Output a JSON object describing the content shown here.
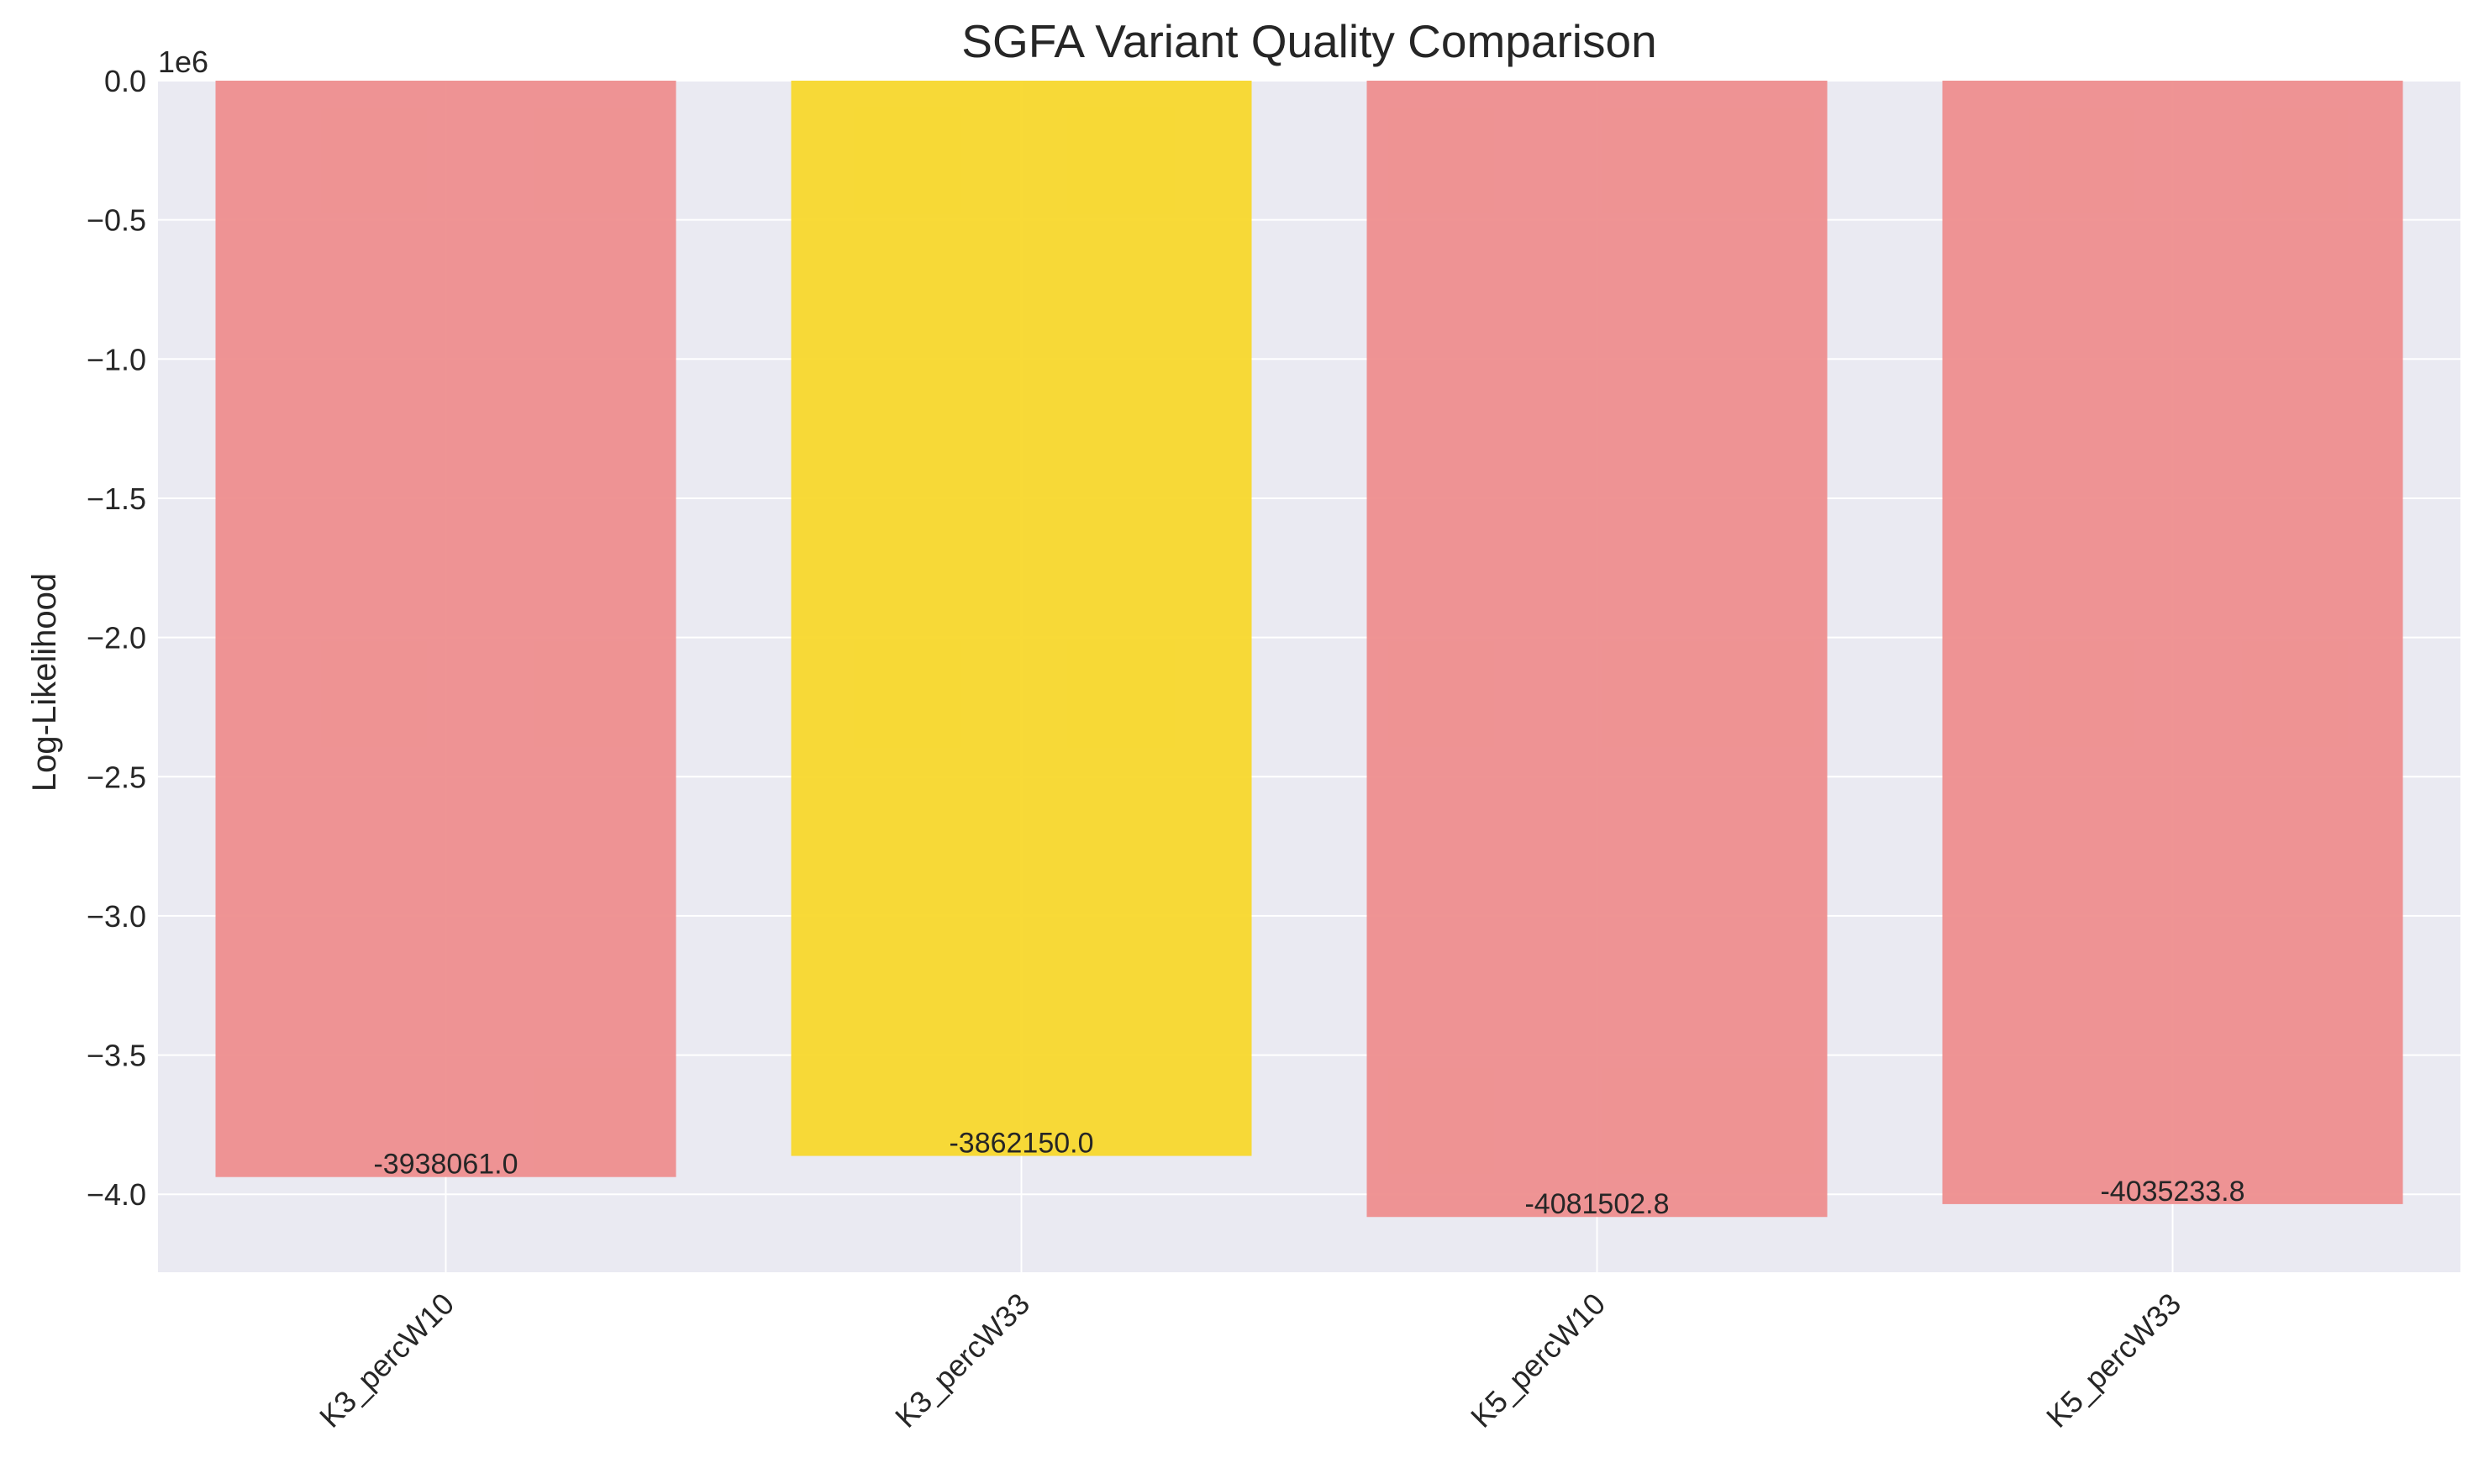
{
  "chart_data": {
    "type": "bar",
    "title": "SGFA Variant Quality Comparison",
    "xlabel": "",
    "ylabel": "Log-Likelihood",
    "y_offset_text": "1e6",
    "categories": [
      "K3_percW10",
      "K3_percW33",
      "K5_percW10",
      "K5_percW33"
    ],
    "values": [
      -3938061.0,
      -3862150.0,
      -4081502.8,
      -4035233.8
    ],
    "value_labels": [
      "-3938061.0",
      "-3862150.0",
      "-4081502.8",
      "-4035233.8"
    ],
    "bar_colors": [
      "#ee8e8e",
      "#f8d82c",
      "#ee8e8e",
      "#ee8e8e"
    ],
    "highlighted_category": "K3_percW33",
    "ylim": [
      -4280000,
      0
    ],
    "yticks": [
      0,
      -500000,
      -1000000,
      -1500000,
      -2000000,
      -2500000,
      -3000000,
      -3500000,
      -4000000
    ],
    "ytick_labels": [
      "0.0",
      "−0.5",
      "−1.0",
      "−1.5",
      "−2.0",
      "−2.5",
      "−3.0",
      "−3.5",
      "−4.0"
    ],
    "grid": true,
    "legend": "none",
    "colors": {
      "plot_background": "#eaeaf2",
      "grid": "#ffffff",
      "text": "#262626"
    }
  }
}
